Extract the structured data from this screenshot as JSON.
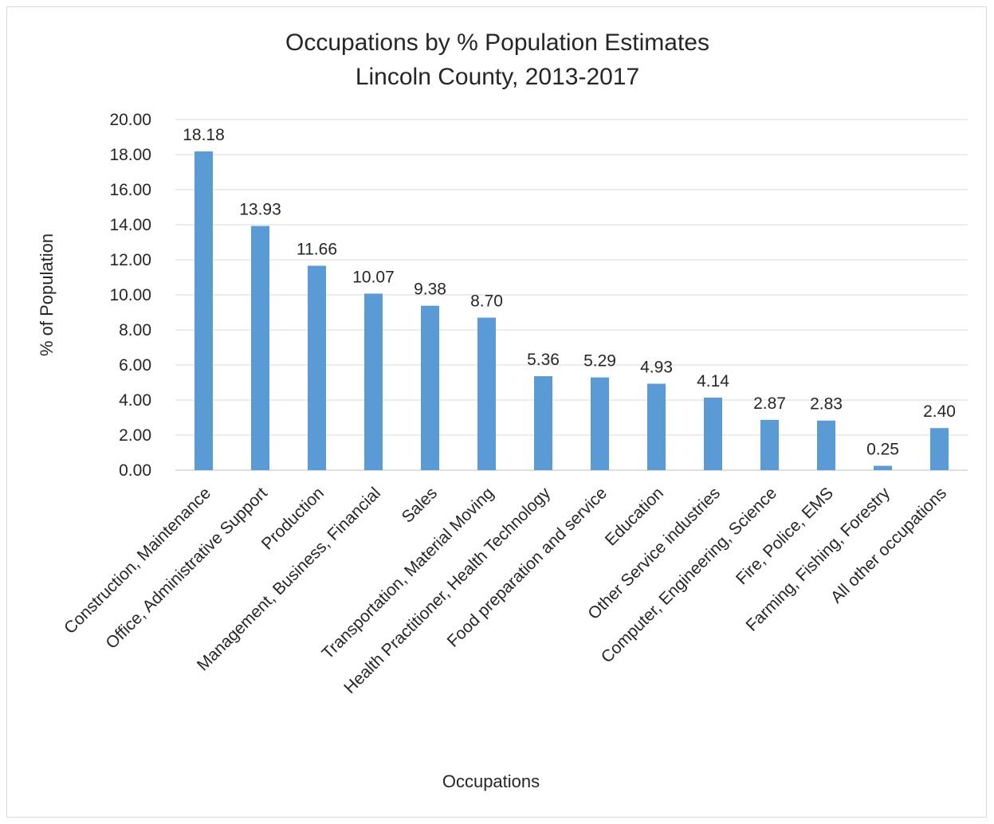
{
  "chart_data": {
    "type": "bar",
    "title": "Occupations by % Population Estimates",
    "subtitle": "Lincoln County, 2013-2017",
    "xlabel": "Occupations",
    "ylabel": "% of Population",
    "ylim": [
      0,
      20
    ],
    "ytick_labels": [
      "0.00",
      "2.00",
      "4.00",
      "6.00",
      "8.00",
      "10.00",
      "12.00",
      "14.00",
      "16.00",
      "18.00",
      "20.00"
    ],
    "grid": true,
    "legend": "none",
    "bar_color": "#5b9bd5",
    "categories": [
      "Construction, Maintenance",
      "Office, Administrative Support",
      "Production",
      "Management, Business, Financial",
      "Sales",
      "Transportation, Material Moving",
      "Health Practitioner, Health Technology",
      "Food preparation and service",
      "Education",
      "Other Service industries",
      "Computer, Engineering, Science",
      "Fire, Police, EMS",
      "Farming, Fishing, Forestry",
      "All other occupations"
    ],
    "values": [
      18.18,
      13.93,
      11.66,
      10.07,
      9.38,
      8.7,
      5.36,
      5.29,
      4.93,
      4.14,
      2.87,
      2.83,
      0.25,
      2.4
    ],
    "data_labels": [
      "18.18",
      "13.93",
      "11.66",
      "10.07",
      "9.38",
      "8.70",
      "5.36",
      "5.29",
      "4.93",
      "4.14",
      "2.87",
      "2.83",
      "0.25",
      "2.40"
    ]
  }
}
